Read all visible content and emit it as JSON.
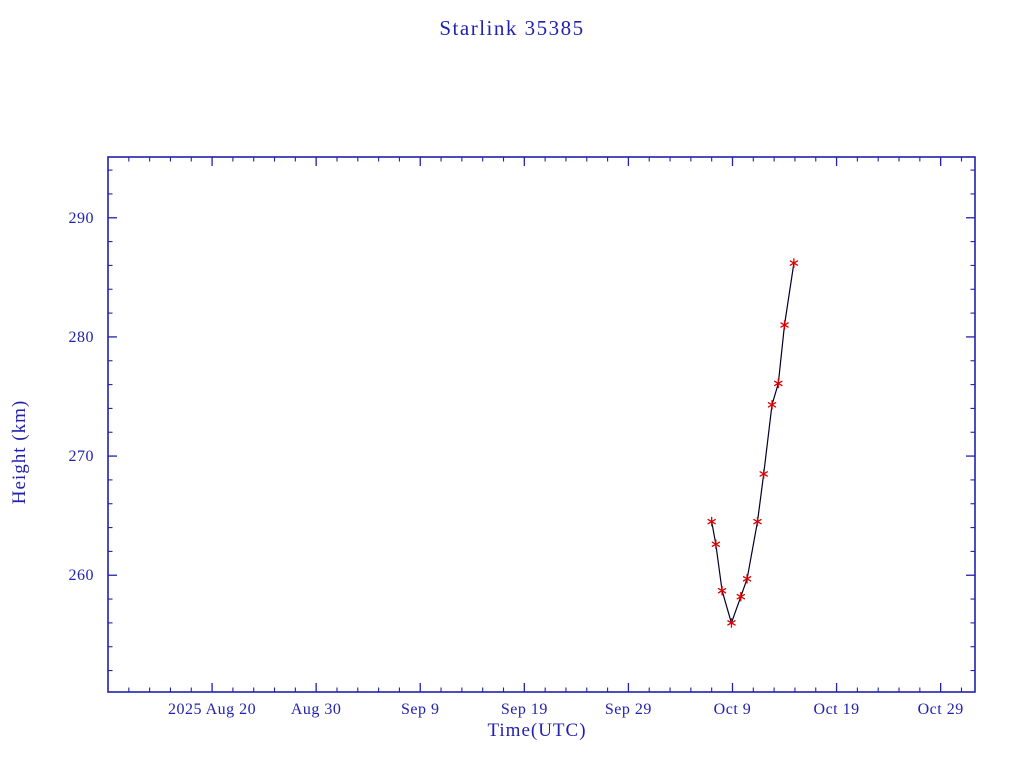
{
  "title": "Starlink 35385",
  "colors": {
    "text_blue": "#2121ae",
    "axis_blue": "#2121ae",
    "line": "#00002a",
    "marker_red": "#d80000",
    "background": "#ffffff"
  },
  "chart_data": {
    "type": "line",
    "title": "Starlink 35385",
    "xlabel": "Time(UTC)",
    "ylabel": "Height (km)",
    "legend": "none",
    "grid": false,
    "x_axis": {
      "epoch_day0": "2025 Aug 10",
      "range_days": [
        0,
        83.3
      ],
      "ticks": [
        {
          "label": "2025 Aug 20",
          "day": 10
        },
        {
          "label": "Aug 30",
          "day": 20
        },
        {
          "label": "Sep 9",
          "day": 30
        },
        {
          "label": "Sep 19",
          "day": 40
        },
        {
          "label": "Sep 29",
          "day": 50
        },
        {
          "label": "Oct 9",
          "day": 60
        },
        {
          "label": "Oct 19",
          "day": 70
        },
        {
          "label": "Oct 29",
          "day": 80
        }
      ],
      "minor_tick_interval_days": 2
    },
    "y_axis": {
      "range": [
        250.2,
        295.1
      ],
      "ticks": [
        260,
        270,
        280,
        290
      ],
      "minor_tick_interval": 2,
      "unit": "km"
    },
    "series": [
      {
        "name": "height",
        "marker": "asterisk",
        "points": [
          {
            "date": "Oct 7",
            "day": 58.0,
            "height_km": 264.5
          },
          {
            "date": "Oct 7",
            "day": 58.4,
            "height_km": 262.6
          },
          {
            "date": "Oct 8",
            "day": 59.0,
            "height_km": 258.7
          },
          {
            "date": "Oct 9",
            "day": 59.9,
            "height_km": 256.0
          },
          {
            "date": "Oct 10",
            "day": 60.8,
            "height_km": 258.2
          },
          {
            "date": "Oct 10",
            "day": 61.4,
            "height_km": 259.7
          },
          {
            "date": "Oct 11",
            "day": 62.4,
            "height_km": 264.5
          },
          {
            "date": "Oct 12",
            "day": 63.0,
            "height_km": 268.5
          },
          {
            "date": "Oct 13",
            "day": 63.8,
            "height_km": 274.3
          },
          {
            "date": "Oct 13",
            "day": 64.4,
            "height_km": 276.1
          },
          {
            "date": "Oct 14",
            "day": 65.0,
            "height_km": 281.0
          },
          {
            "date": "Oct 15",
            "day": 65.9,
            "height_km": 286.2
          }
        ]
      }
    ]
  }
}
